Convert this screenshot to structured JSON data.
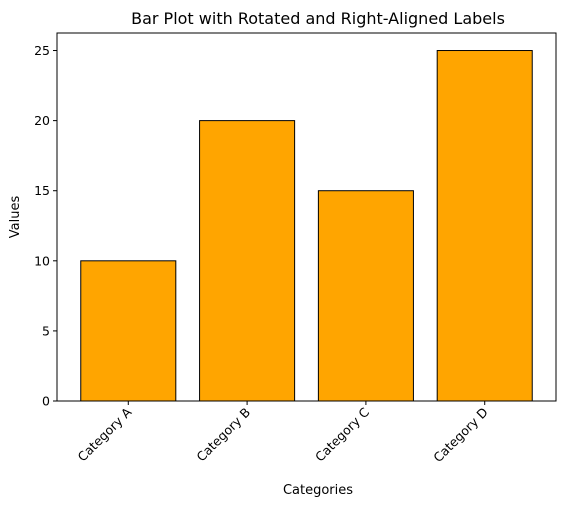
{
  "chart_data": {
    "type": "bar",
    "title": "Bar Plot with Rotated and Right-Aligned Labels",
    "xlabel": "Categories",
    "ylabel": "Values",
    "categories": [
      "Category A",
      "Category B",
      "Category C",
      "Category D"
    ],
    "values": [
      10,
      20,
      15,
      25
    ],
    "ylim": [
      0,
      26.25
    ],
    "yticks": [
      0,
      5,
      10,
      15,
      20,
      25
    ],
    "grid": false,
    "bar_color": "#ffa500",
    "edge_color": "#000000",
    "xtick_rotation_deg": 45,
    "xtick_alignment": "right"
  }
}
